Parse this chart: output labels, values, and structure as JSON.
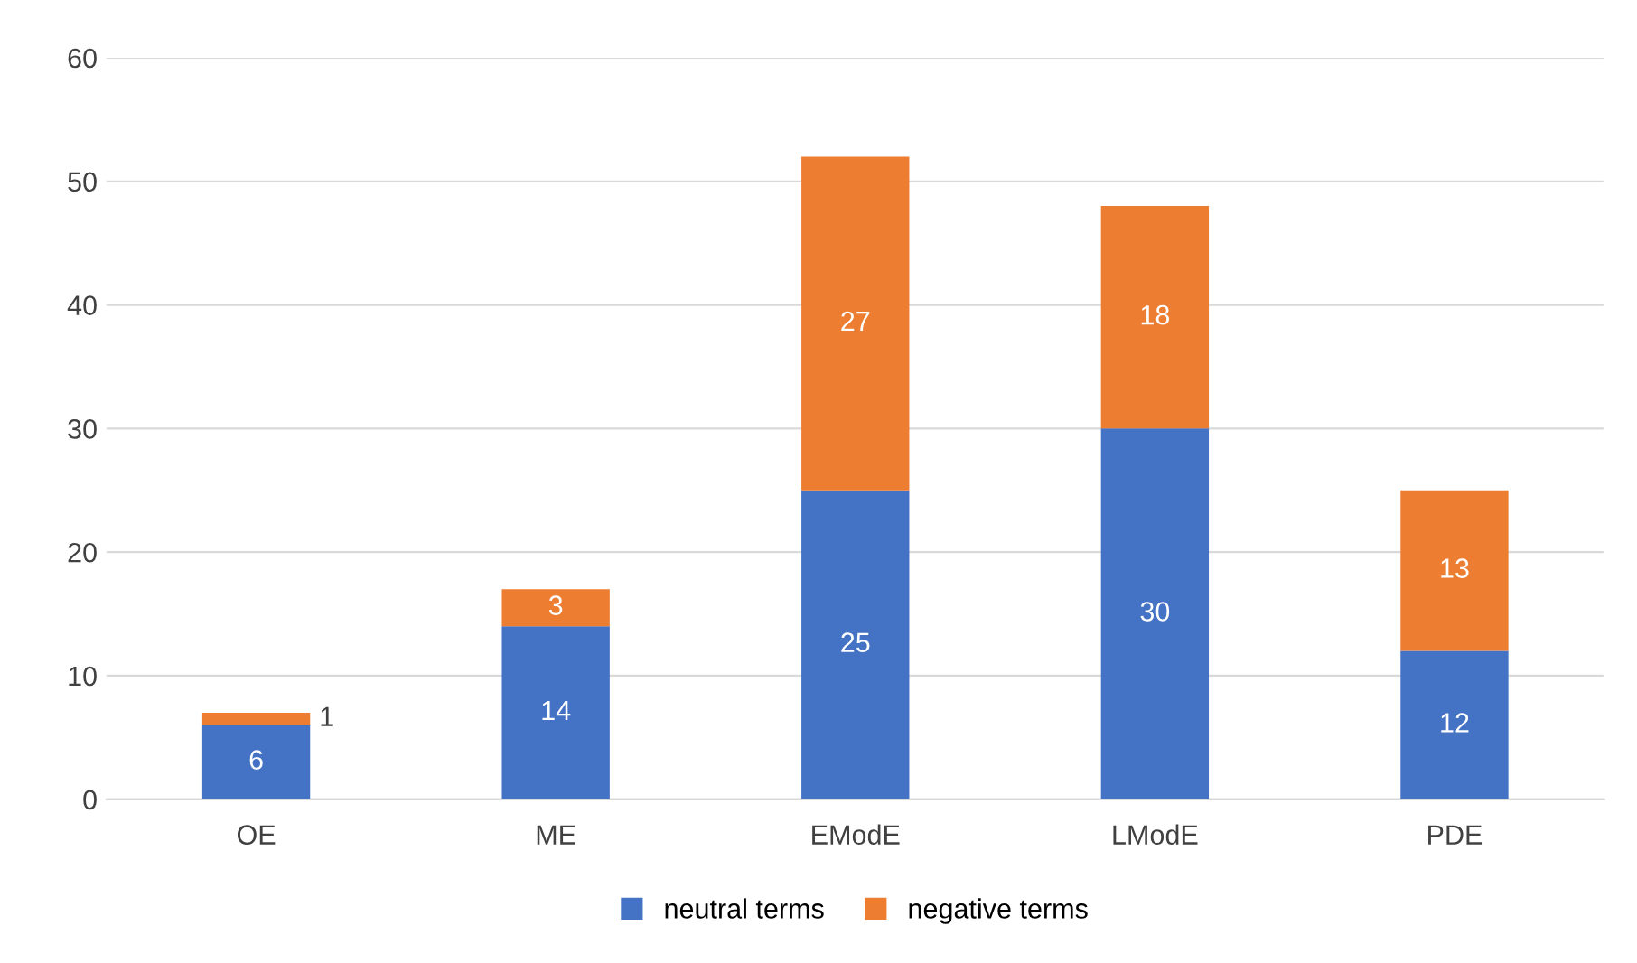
{
  "chart_data": {
    "type": "bar",
    "stacked": true,
    "categories": [
      "OE",
      "ME",
      "EModE",
      "LModE",
      "PDE"
    ],
    "series": [
      {
        "name": "neutral terms",
        "color": "#4472c4",
        "values": [
          6,
          14,
          25,
          30,
          12
        ]
      },
      {
        "name": "negative terms",
        "color": "#ed7d31",
        "values": [
          1,
          3,
          27,
          18,
          13
        ]
      }
    ],
    "ylim": [
      0,
      60
    ],
    "yticks": [
      0,
      10,
      20,
      30,
      40,
      50,
      60
    ],
    "grid": "y",
    "legend": "bottom",
    "data_labels": true
  }
}
